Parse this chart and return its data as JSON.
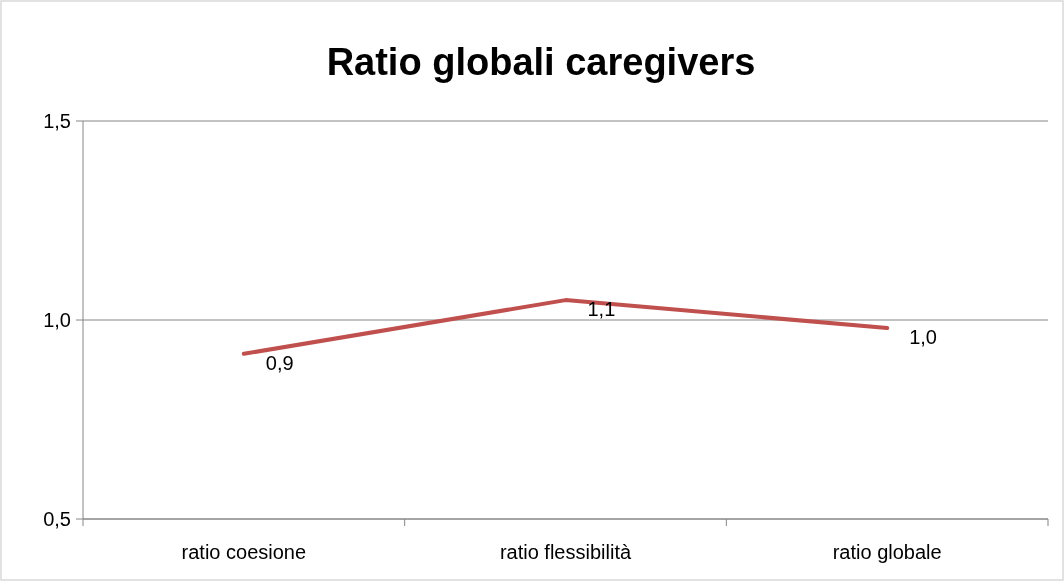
{
  "chart_data": {
    "type": "line",
    "title": "Ratio globali caregivers",
    "categories": [
      "ratio coesione",
      "ratio flessibilità",
      "ratio globale"
    ],
    "series": [
      {
        "color": "#c0504d",
        "values": [
          0.915,
          1.05,
          0.98
        ],
        "value_labels": [
          "0,9",
          "1,1",
          "1,0"
        ]
      }
    ],
    "ylim": [
      0.5,
      1.5
    ],
    "yticks": [
      {
        "value": 0.5,
        "label": "0,5"
      },
      {
        "value": 1,
        "label": "1,0"
      },
      {
        "value": 1.5,
        "label": "1,5"
      }
    ],
    "grid": "y",
    "marker": "none",
    "line_style": "solid"
  }
}
